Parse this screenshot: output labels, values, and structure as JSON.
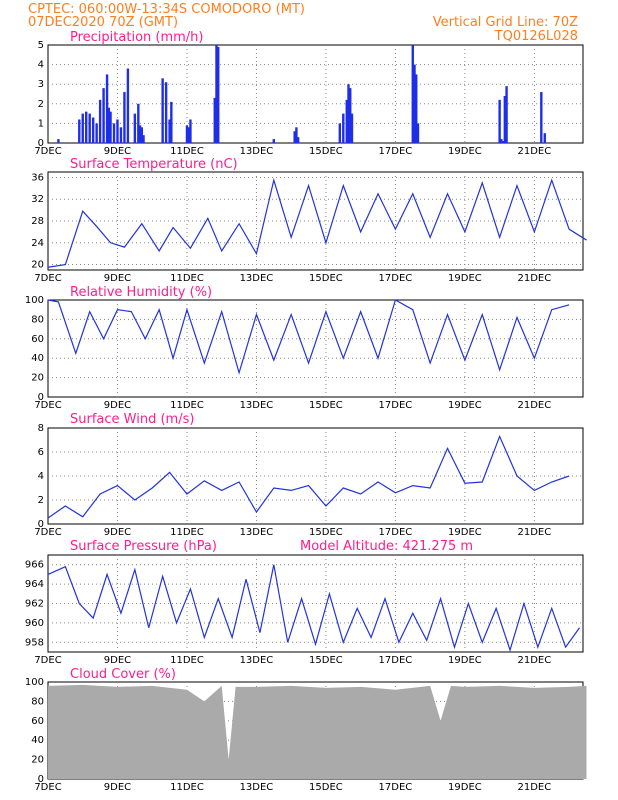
{
  "header": {
    "line1_left": "CPTEC:   060:00W-13:34S   COMODORO (MT)",
    "line2_left": "07DEC2020 70Z (GMT)",
    "line2_right": "Vertical Grid Line: 70Z",
    "line3_right": "TQ0126L028"
  },
  "colors": {
    "header": "#ff7f1e",
    "panel_title": "#ff1e8c",
    "series": "#2233dd",
    "bars": "#1f2ee8",
    "cloud_fill": "#aaaaaa",
    "grid": "#888888"
  },
  "x_tick_labels": [
    "7DEC",
    "9DEC",
    "11DEC",
    "13DEC",
    "15DEC",
    "17DEC",
    "19DEC",
    "21DEC"
  ],
  "panels": {
    "precip": {
      "title": "Precipitation (mm/h)",
      "yticks": [
        "0",
        "1",
        "2",
        "3",
        "4",
        "5"
      ]
    },
    "temp": {
      "title": "Surface Temperature (nC)",
      "yticks": [
        "20",
        "24",
        "28",
        "32",
        "36"
      ]
    },
    "rh": {
      "title": "Relative Humidity (%)",
      "yticks": [
        "0",
        "20",
        "40",
        "60",
        "80",
        "100"
      ]
    },
    "wind": {
      "title": "Surface Wind (m/s)",
      "yticks": [
        "0",
        "2",
        "4",
        "6",
        "8"
      ]
    },
    "pressure": {
      "title": "Surface Pressure (hPa)",
      "extra": "Model Altitude: 421.275 m",
      "yticks": [
        "958",
        "960",
        "962",
        "964",
        "966"
      ]
    },
    "cloud": {
      "title": "Cloud Cover (%)",
      "yticks": [
        "0",
        "20",
        "40",
        "60",
        "80",
        "100"
      ]
    }
  },
  "chart_data": [
    {
      "type": "bar",
      "title": "Precipitation (mm/h)",
      "xlabel": "",
      "ylabel": "",
      "ylim": [
        0,
        5
      ],
      "x_unit": "days since 7DEC",
      "x": [
        0.3,
        0.9,
        1.0,
        1.1,
        1.2,
        1.3,
        1.4,
        1.5,
        1.6,
        1.7,
        1.75,
        1.8,
        1.9,
        2.0,
        2.1,
        2.2,
        2.3,
        2.5,
        2.6,
        2.65,
        2.7,
        2.75,
        3.3,
        3.4,
        3.5,
        3.55,
        4.0,
        4.05,
        4.1,
        4.8,
        4.85,
        4.9,
        6.5,
        7.1,
        7.15,
        7.2,
        8.4,
        8.5,
        8.6,
        8.65,
        8.7,
        8.75,
        10.5,
        10.55,
        10.6,
        10.65,
        13.0,
        13.05,
        13.1,
        13.15,
        13.2,
        14.2,
        14.3,
        17.2,
        17.25,
        17.3,
        17.35,
        17.4
      ],
      "values": [
        0.2,
        1.2,
        1.5,
        1.6,
        1.5,
        1.3,
        1.0,
        2.2,
        2.8,
        3.5,
        1.8,
        1.6,
        1.0,
        1.2,
        0.8,
        2.6,
        3.8,
        1.5,
        2.0,
        0.9,
        0.8,
        0.4,
        3.3,
        3.1,
        1.2,
        2.1,
        0.9,
        0.8,
        1.2,
        2.3,
        5.0,
        4.9,
        0.2,
        0.6,
        0.8,
        0.3,
        1.0,
        1.5,
        2.2,
        3.0,
        2.8,
        1.5,
        5.0,
        4.0,
        3.5,
        1.0,
        2.2,
        0.2,
        0.1,
        2.4,
        2.9,
        2.6,
        0.5,
        2.3,
        2.0,
        2.8,
        2.6,
        0.5
      ]
    },
    {
      "type": "line",
      "title": "Surface Temperature (nC)",
      "ylim": [
        19,
        37
      ],
      "x_unit": "days since 7DEC",
      "x": [
        0,
        0.5,
        1.0,
        1.4,
        1.8,
        2.2,
        2.7,
        3.2,
        3.6,
        4.1,
        4.6,
        5.0,
        5.5,
        6.0,
        6.5,
        7.0,
        7.5,
        8.0,
        8.5,
        9.0,
        9.5,
        10.0,
        10.5,
        11.0,
        11.5,
        12.0,
        12.5,
        13.0,
        13.5,
        14.0,
        14.5,
        15.0,
        15.5
      ],
      "values": [
        19.5,
        20,
        29.8,
        27,
        24,
        23.2,
        27.5,
        22.5,
        26.8,
        23,
        28.5,
        22.5,
        27.5,
        22,
        35.5,
        25,
        34.5,
        24,
        34.5,
        26,
        33,
        26.5,
        33,
        25,
        33,
        26,
        35,
        25,
        34.5,
        26,
        35.5,
        26.5,
        24.5
      ]
    },
    {
      "type": "line",
      "title": "Relative Humidity (%)",
      "ylim": [
        0,
        100
      ],
      "x_unit": "days since 7DEC",
      "x": [
        0,
        0.3,
        0.8,
        1.2,
        1.6,
        2.0,
        2.4,
        2.8,
        3.2,
        3.6,
        4.0,
        4.5,
        5.0,
        5.5,
        6.0,
        6.5,
        7.0,
        7.5,
        8.0,
        8.5,
        9.0,
        9.5,
        10.0,
        10.5,
        11.0,
        11.5,
        12.0,
        12.5,
        13.0,
        13.5,
        14.0,
        14.5,
        15.0
      ],
      "values": [
        100,
        98,
        45,
        88,
        60,
        90,
        88,
        60,
        90,
        40,
        90,
        35,
        88,
        25,
        85,
        38,
        85,
        35,
        88,
        40,
        88,
        40,
        100,
        90,
        35,
        85,
        38,
        85,
        28,
        82,
        40,
        90,
        95
      ]
    },
    {
      "type": "line",
      "title": "Surface Wind (m/s)",
      "ylim": [
        0,
        8
      ],
      "x_unit": "days since 7DEC",
      "x": [
        0,
        0.5,
        1.0,
        1.5,
        2.0,
        2.5,
        3.0,
        3.5,
        4.0,
        4.5,
        5.0,
        5.5,
        6.0,
        6.5,
        7.0,
        7.5,
        8.0,
        8.5,
        9.0,
        9.5,
        10.0,
        10.5,
        11.0,
        11.5,
        12.0,
        12.5,
        13.0,
        13.5,
        14.0,
        14.5,
        15.0
      ],
      "values": [
        0.5,
        1.5,
        0.6,
        2.5,
        3.2,
        2.0,
        3.0,
        4.3,
        2.5,
        3.6,
        2.8,
        3.5,
        1.0,
        3.0,
        2.8,
        3.2,
        1.5,
        3.0,
        2.5,
        3.5,
        2.6,
        3.2,
        3.0,
        6.3,
        3.4,
        3.5,
        7.3,
        4.0,
        2.8,
        3.5,
        4.0
      ]
    },
    {
      "type": "line",
      "title": "Surface Pressure (hPa)",
      "ylim": [
        957,
        967
      ],
      "x_unit": "days since 7DEC",
      "x": [
        0,
        0.5,
        0.9,
        1.3,
        1.7,
        2.1,
        2.5,
        2.9,
        3.3,
        3.7,
        4.1,
        4.5,
        4.9,
        5.3,
        5.7,
        6.1,
        6.5,
        6.9,
        7.3,
        7.7,
        8.1,
        8.5,
        8.9,
        9.3,
        9.7,
        10.1,
        10.5,
        10.9,
        11.3,
        11.7,
        12.1,
        12.5,
        12.9,
        13.3,
        13.7,
        14.1,
        14.5,
        14.9,
        15.3
      ],
      "values": [
        965,
        965.8,
        962,
        960.5,
        965,
        961,
        965.5,
        959.5,
        964.8,
        960,
        963.5,
        958.5,
        962.5,
        958.5,
        964.5,
        959,
        966,
        958,
        962.5,
        957.8,
        963,
        958,
        961.5,
        958.5,
        962.5,
        958,
        961,
        958.2,
        962.5,
        957.5,
        962,
        958,
        961.5,
        957.2,
        962,
        957.5,
        961.5,
        957.5,
        959.5
      ]
    },
    {
      "type": "area",
      "title": "Cloud Cover (%)",
      "ylim": [
        0,
        100
      ],
      "x_unit": "days since 7DEC",
      "x": [
        0,
        1,
        2,
        3,
        4,
        4.5,
        5,
        5.2,
        5.4,
        6,
        7,
        8,
        9,
        10,
        11,
        11.3,
        11.6,
        12,
        13,
        14,
        15,
        15.5
      ],
      "values": [
        96,
        97,
        95,
        96,
        92,
        80,
        96,
        20,
        95,
        95,
        96,
        94,
        95,
        92,
        96,
        60,
        96,
        95,
        96,
        94,
        95,
        96
      ]
    }
  ]
}
